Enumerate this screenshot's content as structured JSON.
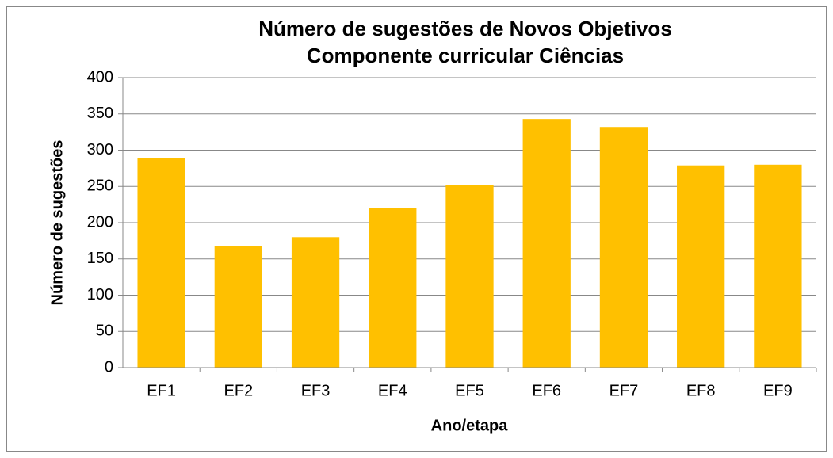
{
  "chart_data": {
    "type": "bar",
    "title": [
      "Número de sugestões de Novos Objetivos",
      "Componente curricular Ciências"
    ],
    "x_label": "Ano/etapa",
    "y_label": "Número de sugestões",
    "categories": [
      "EF1",
      "EF2",
      "EF3",
      "EF4",
      "EF5",
      "EF6",
      "EF7",
      "EF8",
      "EF9"
    ],
    "values": [
      289,
      168,
      180,
      220,
      252,
      343,
      332,
      279,
      280
    ],
    "color": "#ffc000",
    "ylim": [
      0,
      400
    ],
    "yticks": [
      0,
      50,
      100,
      150,
      200,
      250,
      300,
      350,
      400
    ],
    "grid": true
  }
}
